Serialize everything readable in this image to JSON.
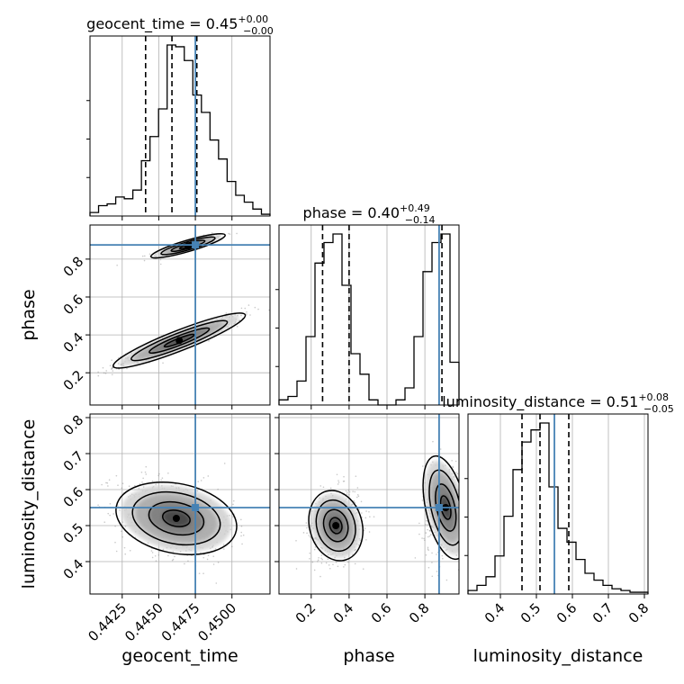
{
  "chart_data": {
    "type": "corner",
    "parameters": [
      "geocent_time",
      "phase",
      "luminosity_distance"
    ],
    "titles": [
      {
        "param": "geocent_time",
        "prefix": "geocent_time = 0.45",
        "plus": "+0.00",
        "minus": "−0.00"
      },
      {
        "param": "phase",
        "prefix": "phase = 0.40",
        "plus": "+0.49",
        "minus": "−0.14"
      },
      {
        "param": "luminosity_distance",
        "prefix": "luminosity_distance = 0.51",
        "plus": "+0.08",
        "minus": "−0.05"
      }
    ],
    "truths": {
      "geocent_time": 0.4475,
      "phase": 0.875,
      "luminosity_distance": 0.55
    },
    "quantiles": {
      "geocent_time": [
        0.4441,
        0.4459,
        0.4476
      ],
      "phase": [
        0.26,
        0.4,
        0.89
      ],
      "luminosity_distance": [
        0.46,
        0.51,
        0.59
      ]
    },
    "ranges": {
      "geocent_time": [
        0.4403,
        0.4526
      ],
      "phase": [
        0.03,
        0.98
      ],
      "luminosity_distance": [
        0.31,
        0.81
      ]
    },
    "ticks": {
      "geocent_time": {
        "values": [
          0.4425,
          0.445,
          0.4475,
          0.45
        ],
        "labels": [
          "0.4425",
          "0.4450",
          "0.4475",
          "0.4500"
        ]
      },
      "phase": {
        "values": [
          0.2,
          0.4,
          0.6,
          0.8
        ],
        "labels": [
          "0.2",
          "0.4",
          "0.6",
          "0.8"
        ]
      },
      "luminosity_distance": {
        "values": [
          0.4,
          0.5,
          0.6,
          0.7,
          0.8
        ],
        "labels": [
          "0.4",
          "0.5",
          "0.6",
          "0.7",
          "0.8"
        ]
      }
    },
    "histograms": {
      "geocent_time": [
        0.02,
        0.06,
        0.07,
        0.11,
        0.1,
        0.15,
        0.32,
        0.46,
        0.62,
        0.99,
        0.98,
        0.9,
        0.7,
        0.6,
        0.44,
        0.33,
        0.2,
        0.12,
        0.08,
        0.04,
        0.01
      ],
      "phase": [
        0.03,
        0.05,
        0.14,
        0.4,
        0.83,
        0.95,
        1.0,
        0.7,
        0.3,
        0.18,
        0.03,
        0.0,
        0.0,
        0.03,
        0.1,
        0.4,
        0.78,
        0.95,
        1.0,
        0.25
      ],
      "luminosity_distance": [
        0.02,
        0.05,
        0.1,
        0.22,
        0.45,
        0.72,
        0.88,
        0.95,
        0.99,
        0.62,
        0.38,
        0.3,
        0.2,
        0.12,
        0.08,
        0.05,
        0.03,
        0.02,
        0.01,
        0.01
      ]
    },
    "grid": true,
    "xlabels": [
      "geocent_time",
      "phase",
      "luminosity_distance"
    ],
    "ylabels": [
      "phase",
      "luminosity_distance"
    ]
  }
}
